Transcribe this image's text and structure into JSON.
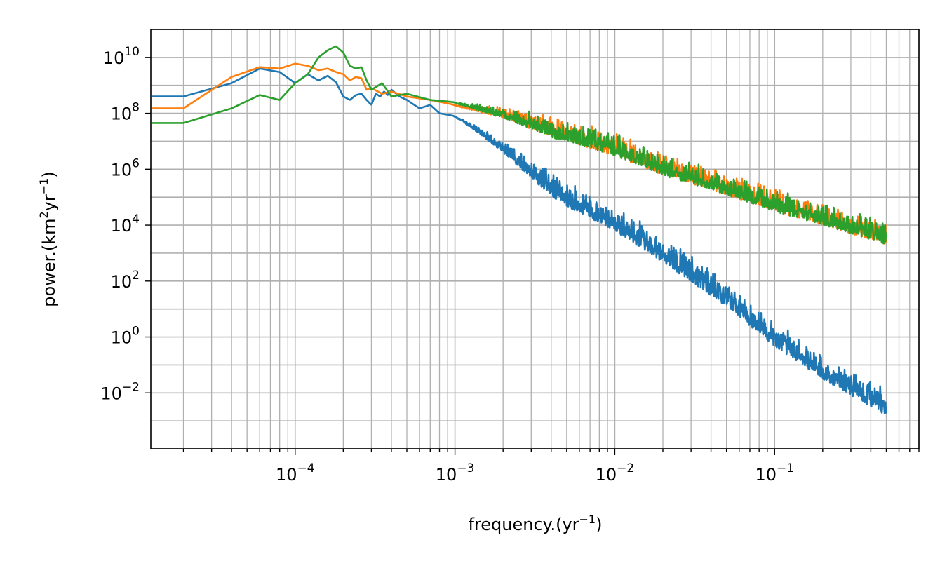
{
  "chart_data": {
    "type": "line",
    "title": "",
    "xlabel": {
      "base": "frequency.(yr",
      "sup": "−1",
      "tail": ")"
    },
    "ylabel": {
      "p1": "power.(km",
      "s1": "2",
      "p2": "yr",
      "s2": "−1",
      "p3": ")"
    },
    "x_scale": "log",
    "y_scale": "log",
    "xlim": [
      1.25e-05,
      0.8
    ],
    "ylim": [
      0.0001,
      100000000000.0
    ],
    "grid": "major and minor",
    "legend": "none",
    "x_ticks": [
      {
        "value": 0.0001,
        "base": "10",
        "exp": "−4"
      },
      {
        "value": 0.001,
        "base": "10",
        "exp": "−3"
      },
      {
        "value": 0.01,
        "base": "10",
        "exp": "−2"
      },
      {
        "value": 0.1,
        "base": "10",
        "exp": "−1"
      }
    ],
    "y_ticks": [
      {
        "value": 10000000000.0,
        "base": "10",
        "exp": "10"
      },
      {
        "value": 100000000.0,
        "base": "10",
        "exp": "8"
      },
      {
        "value": 1000000.0,
        "base": "10",
        "exp": "6"
      },
      {
        "value": 10000.0,
        "base": "10",
        "exp": "4"
      },
      {
        "value": 100.0,
        "base": "10",
        "exp": "2"
      },
      {
        "value": 1,
        "base": "10",
        "exp": "0"
      },
      {
        "value": 0.01,
        "base": "10",
        "exp": "−2"
      }
    ],
    "series": [
      {
        "color": "#1f77b4",
        "x": [
          2e-05,
          4e-05,
          6e-05,
          8e-05,
          0.0001,
          0.00012,
          0.00014,
          0.00016,
          0.00018,
          0.0002,
          0.00022,
          0.00024,
          0.00026,
          0.00028,
          0.0003,
          0.00032,
          0.00034,
          0.00036,
          0.00038,
          0.0004,
          0.00045,
          0.0005,
          0.0006,
          0.0007,
          0.0008,
          0.001,
          0.0013,
          0.002,
          0.003,
          0.005,
          0.01,
          0.02,
          0.05,
          0.1,
          0.2,
          0.5
        ],
        "y": [
          400000000.0,
          1200000000.0,
          4000000000.0,
          3000000000.0,
          1200000000.0,
          2500000000.0,
          1500000000.0,
          2200000000.0,
          1300000000.0,
          400000000.0,
          300000000.0,
          450000000.0,
          500000000.0,
          300000000.0,
          200000000.0,
          500000000.0,
          400000000.0,
          600000000.0,
          450000000.0,
          700000000.0,
          400000000.0,
          300000000.0,
          150000000.0,
          200000000.0,
          100000000.0,
          80000000.0,
          40000000.0,
          10000000.0,
          2000000.0,
          300000.0,
          40000.0,
          3000.0,
          80.0,
          3,
          0.2,
          0.01
        ],
        "noise": 0.7
      },
      {
        "color": "#ff7f0e",
        "x": [
          2e-05,
          4e-05,
          6e-05,
          8e-05,
          0.0001,
          0.00012,
          0.00014,
          0.00016,
          0.00018,
          0.0002,
          0.00022,
          0.00024,
          0.00026,
          0.00028,
          0.0003,
          0.00035,
          0.0004,
          0.0005,
          0.0007,
          0.001,
          0.002,
          0.005,
          0.01,
          0.02,
          0.05,
          0.1,
          0.2,
          0.5
        ],
        "y": [
          150000000.0,
          2000000000.0,
          4500000000.0,
          4000000000.0,
          6000000000.0,
          5000000000.0,
          3500000000.0,
          4000000000.0,
          3000000000.0,
          2500000000.0,
          1500000000.0,
          2000000000.0,
          1800000000.0,
          700000000.0,
          800000000.0,
          500000000.0,
          600000000.0,
          400000000.0,
          300000000.0,
          200000000.0,
          150000000.0,
          50000000.0,
          15000000.0,
          3000000.0,
          600000.0,
          150000.0,
          50000.0,
          10000.0
        ],
        "noise": 0.6
      },
      {
        "color": "#2ca02c",
        "x": [
          2e-05,
          4e-05,
          6e-05,
          8e-05,
          0.0001,
          0.00012,
          0.00014,
          0.00016,
          0.00018,
          0.0002,
          0.00022,
          0.00024,
          0.00026,
          0.00028,
          0.0003,
          0.00035,
          0.0004,
          0.0005,
          0.0007,
          0.001,
          0.002,
          0.005,
          0.01,
          0.02,
          0.05,
          0.1,
          0.2,
          0.5
        ],
        "y": [
          45000000.0,
          150000000.0,
          450000000.0,
          300000000.0,
          1200000000.0,
          2500000000.0,
          10000000000.0,
          18000000000.0,
          25000000000.0,
          15000000000.0,
          5000000000.0,
          4000000000.0,
          4500000000.0,
          1500000000.0,
          700000000.0,
          1200000000.0,
          400000000.0,
          500000000.0,
          300000000.0,
          250000000.0,
          150000000.0,
          50000000.0,
          15000000.0,
          3000000.0,
          600000.0,
          150000.0,
          50000.0,
          10000.0
        ],
        "noise": 0.6
      }
    ]
  }
}
